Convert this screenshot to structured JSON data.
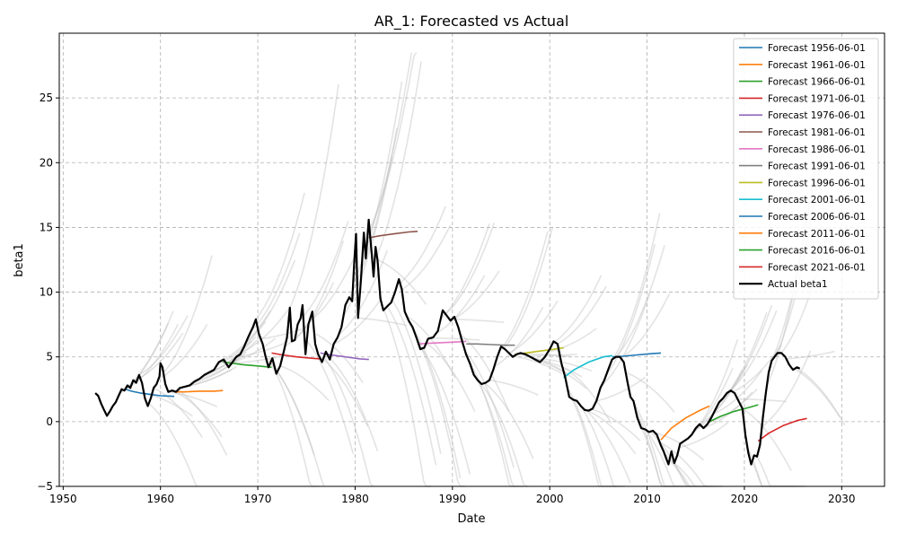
{
  "chart_data": {
    "type": "line",
    "title": "AR_1: Forecasted vs Actual",
    "xlabel": "Date",
    "ylabel": "beta1",
    "xlim": [
      1949.6,
      2034.4
    ],
    "ylim": [
      -5,
      30
    ],
    "x_ticks": [
      1950,
      1960,
      1970,
      1980,
      1990,
      2000,
      2010,
      2020,
      2030
    ],
    "y_ticks": [
      -5,
      0,
      5,
      10,
      15,
      20,
      25
    ],
    "grid": true,
    "legend_position": "top-right",
    "actual": {
      "name": "Actual beta1",
      "color": "#000000",
      "points": [
        [
          1953.3,
          2.2
        ],
        [
          1953.6,
          2.0
        ],
        [
          1953.9,
          1.4
        ],
        [
          1954.2,
          0.9
        ],
        [
          1954.5,
          0.45
        ],
        [
          1954.8,
          0.8
        ],
        [
          1955.1,
          1.2
        ],
        [
          1955.4,
          1.5
        ],
        [
          1955.7,
          2.0
        ],
        [
          1956.0,
          2.5
        ],
        [
          1956.3,
          2.4
        ],
        [
          1956.6,
          2.8
        ],
        [
          1956.9,
          2.6
        ],
        [
          1957.2,
          3.2
        ],
        [
          1957.5,
          3.0
        ],
        [
          1957.8,
          3.6
        ],
        [
          1958.1,
          3.0
        ],
        [
          1958.4,
          1.8
        ],
        [
          1958.7,
          1.2
        ],
        [
          1959.0,
          1.8
        ],
        [
          1959.3,
          2.6
        ],
        [
          1959.6,
          2.9
        ],
        [
          1959.9,
          3.5
        ],
        [
          1960.0,
          4.5
        ],
        [
          1960.2,
          4.2
        ],
        [
          1960.5,
          2.9
        ],
        [
          1960.8,
          2.3
        ],
        [
          1961.2,
          2.4
        ],
        [
          1961.6,
          2.3
        ],
        [
          1962.0,
          2.6
        ],
        [
          1962.5,
          2.7
        ],
        [
          1963.0,
          2.8
        ],
        [
          1963.5,
          3.1
        ],
        [
          1964.0,
          3.3
        ],
        [
          1964.5,
          3.6
        ],
        [
          1965.0,
          3.8
        ],
        [
          1965.5,
          4.0
        ],
        [
          1966.0,
          4.6
        ],
        [
          1966.5,
          4.8
        ],
        [
          1967.0,
          4.2
        ],
        [
          1967.4,
          4.6
        ],
        [
          1967.8,
          5.0
        ],
        [
          1968.2,
          5.2
        ],
        [
          1968.6,
          5.8
        ],
        [
          1969.0,
          6.5
        ],
        [
          1969.5,
          7.3
        ],
        [
          1969.8,
          7.9
        ],
        [
          1970.1,
          6.8
        ],
        [
          1970.5,
          6.0
        ],
        [
          1970.8,
          5.0
        ],
        [
          1971.1,
          4.2
        ],
        [
          1971.5,
          4.9
        ],
        [
          1971.9,
          3.7
        ],
        [
          1972.3,
          4.3
        ],
        [
          1972.7,
          5.5
        ],
        [
          1973.0,
          6.5
        ],
        [
          1973.3,
          8.8
        ],
        [
          1973.5,
          6.2
        ],
        [
          1973.8,
          6.3
        ],
        [
          1974.1,
          7.5
        ],
        [
          1974.4,
          8.0
        ],
        [
          1974.6,
          9.0
        ],
        [
          1974.9,
          5.2
        ],
        [
          1975.2,
          7.5
        ],
        [
          1975.6,
          8.5
        ],
        [
          1975.9,
          6.0
        ],
        [
          1976.2,
          5.2
        ],
        [
          1976.6,
          4.6
        ],
        [
          1977.0,
          5.4
        ],
        [
          1977.4,
          4.8
        ],
        [
          1977.8,
          6.0
        ],
        [
          1978.2,
          6.5
        ],
        [
          1978.6,
          7.3
        ],
        [
          1979.0,
          9.0
        ],
        [
          1979.4,
          9.6
        ],
        [
          1979.7,
          9.3
        ],
        [
          1979.9,
          12.2
        ],
        [
          1980.1,
          14.5
        ],
        [
          1980.3,
          8.0
        ],
        [
          1980.6,
          11.0
        ],
        [
          1980.9,
          14.6
        ],
        [
          1981.1,
          12.6
        ],
        [
          1981.4,
          15.6
        ],
        [
          1981.7,
          13.0
        ],
        [
          1981.9,
          11.2
        ],
        [
          1982.1,
          13.5
        ],
        [
          1982.3,
          12.5
        ],
        [
          1982.6,
          9.5
        ],
        [
          1982.9,
          8.6
        ],
        [
          1983.3,
          8.9
        ],
        [
          1983.7,
          9.2
        ],
        [
          1984.1,
          10.0
        ],
        [
          1984.5,
          11.0
        ],
        [
          1984.8,
          10.2
        ],
        [
          1985.1,
          8.5
        ],
        [
          1985.5,
          7.8
        ],
        [
          1985.9,
          7.3
        ],
        [
          1986.3,
          6.5
        ],
        [
          1986.7,
          5.6
        ],
        [
          1987.1,
          5.7
        ],
        [
          1987.5,
          6.4
        ],
        [
          1988.0,
          6.5
        ],
        [
          1988.5,
          7.0
        ],
        [
          1989.0,
          8.6
        ],
        [
          1989.4,
          8.2
        ],
        [
          1989.8,
          7.8
        ],
        [
          1990.2,
          8.1
        ],
        [
          1990.6,
          7.3
        ],
        [
          1991.0,
          6.2
        ],
        [
          1991.4,
          5.2
        ],
        [
          1991.8,
          4.5
        ],
        [
          1992.2,
          3.6
        ],
        [
          1992.6,
          3.2
        ],
        [
          1993.0,
          2.9
        ],
        [
          1993.4,
          3.0
        ],
        [
          1993.8,
          3.2
        ],
        [
          1994.2,
          4.0
        ],
        [
          1994.6,
          5.0
        ],
        [
          1995.0,
          5.8
        ],
        [
          1995.4,
          5.6
        ],
        [
          1995.8,
          5.3
        ],
        [
          1996.2,
          5.0
        ],
        [
          1996.6,
          5.2
        ],
        [
          1997.0,
          5.3
        ],
        [
          1997.5,
          5.2
        ],
        [
          1998.0,
          5.0
        ],
        [
          1998.5,
          4.8
        ],
        [
          1999.0,
          4.6
        ],
        [
          1999.5,
          5.0
        ],
        [
          2000.0,
          5.6
        ],
        [
          2000.4,
          6.2
        ],
        [
          2000.8,
          6.0
        ],
        [
          2001.2,
          4.5
        ],
        [
          2001.6,
          3.4
        ],
        [
          2002.0,
          1.9
        ],
        [
          2002.4,
          1.7
        ],
        [
          2002.8,
          1.6
        ],
        [
          2003.2,
          1.2
        ],
        [
          2003.6,
          0.9
        ],
        [
          2004.0,
          0.85
        ],
        [
          2004.4,
          1.0
        ],
        [
          2004.8,
          1.6
        ],
        [
          2005.2,
          2.6
        ],
        [
          2005.6,
          3.2
        ],
        [
          2006.0,
          4.0
        ],
        [
          2006.4,
          4.8
        ],
        [
          2006.8,
          5.0
        ],
        [
          2007.2,
          5.0
        ],
        [
          2007.6,
          4.6
        ],
        [
          2008.0,
          3.0
        ],
        [
          2008.3,
          1.9
        ],
        [
          2008.6,
          1.6
        ],
        [
          2009.0,
          0.3
        ],
        [
          2009.4,
          -0.5
        ],
        [
          2009.8,
          -0.6
        ],
        [
          2010.2,
          -0.8
        ],
        [
          2010.6,
          -0.7
        ],
        [
          2011.0,
          -1.0
        ],
        [
          2011.4,
          -1.8
        ],
        [
          2011.7,
          -2.3
        ],
        [
          2012.0,
          -2.9
        ],
        [
          2012.2,
          -3.3
        ],
        [
          2012.5,
          -2.3
        ],
        [
          2012.8,
          -3.2
        ],
        [
          2013.1,
          -2.6
        ],
        [
          2013.4,
          -1.7
        ],
        [
          2013.8,
          -1.5
        ],
        [
          2014.2,
          -1.3
        ],
        [
          2014.6,
          -1.0
        ],
        [
          2015.0,
          -0.5
        ],
        [
          2015.4,
          -0.2
        ],
        [
          2015.8,
          -0.5
        ],
        [
          2016.2,
          -0.2
        ],
        [
          2016.6,
          0.3
        ],
        [
          2017.0,
          0.9
        ],
        [
          2017.4,
          1.5
        ],
        [
          2017.8,
          1.8
        ],
        [
          2018.2,
          2.2
        ],
        [
          2018.6,
          2.4
        ],
        [
          2019.0,
          2.2
        ],
        [
          2019.4,
          1.6
        ],
        [
          2019.8,
          1.0
        ],
        [
          2020.1,
          -1.0
        ],
        [
          2020.4,
          -2.4
        ],
        [
          2020.7,
          -3.3
        ],
        [
          2021.0,
          -2.6
        ],
        [
          2021.3,
          -2.7
        ],
        [
          2021.6,
          -1.8
        ],
        [
          2021.9,
          0.3
        ],
        [
          2022.2,
          2.2
        ],
        [
          2022.5,
          3.8
        ],
        [
          2022.8,
          4.7
        ],
        [
          2023.1,
          5.0
        ],
        [
          2023.4,
          5.3
        ],
        [
          2023.8,
          5.3
        ],
        [
          2024.2,
          5.0
        ],
        [
          2024.6,
          4.4
        ],
        [
          2025.0,
          4.0
        ],
        [
          2025.4,
          4.2
        ],
        [
          2025.7,
          4.1
        ]
      ]
    },
    "forecast_series": [
      {
        "name": "Forecast 1956-06-01",
        "color": "#1f77b4",
        "points": [
          [
            1956.42,
            2.5
          ],
          [
            1957.0,
            2.35
          ],
          [
            1958.0,
            2.2
          ],
          [
            1959.0,
            2.1
          ],
          [
            1960.0,
            2.0
          ],
          [
            1961.42,
            1.95
          ]
        ]
      },
      {
        "name": "Forecast 1961-06-01",
        "color": "#ff7f0e",
        "points": [
          [
            1961.42,
            2.3
          ],
          [
            1962.5,
            2.3
          ],
          [
            1964.0,
            2.35
          ],
          [
            1965.5,
            2.35
          ],
          [
            1966.42,
            2.4
          ]
        ]
      },
      {
        "name": "Forecast 1966-06-01",
        "color": "#2ca02c",
        "points": [
          [
            1966.42,
            4.6
          ],
          [
            1967.5,
            4.5
          ],
          [
            1968.5,
            4.4
          ],
          [
            1970.0,
            4.3
          ],
          [
            1971.42,
            4.2
          ]
        ]
      },
      {
        "name": "Forecast 1971-06-01",
        "color": "#d62728",
        "points": [
          [
            1971.42,
            5.3
          ],
          [
            1972.5,
            5.15
          ],
          [
            1974.0,
            5.0
          ],
          [
            1975.5,
            4.9
          ],
          [
            1976.42,
            4.85
          ]
        ]
      },
      {
        "name": "Forecast 1976-06-01",
        "color": "#9467bd",
        "points": [
          [
            1976.42,
            5.3
          ],
          [
            1977.5,
            5.15
          ],
          [
            1979.0,
            5.0
          ],
          [
            1980.5,
            4.85
          ],
          [
            1981.42,
            4.8
          ]
        ]
      },
      {
        "name": "Forecast 1981-06-01",
        "color": "#8c564b",
        "points": [
          [
            1981.42,
            14.2
          ],
          [
            1982.5,
            14.35
          ],
          [
            1984.0,
            14.5
          ],
          [
            1985.5,
            14.65
          ],
          [
            1986.42,
            14.7
          ]
        ]
      },
      {
        "name": "Forecast 1986-06-01",
        "color": "#e377c2",
        "points": [
          [
            1986.42,
            6.0
          ],
          [
            1987.5,
            6.05
          ],
          [
            1989.0,
            6.1
          ],
          [
            1990.5,
            6.15
          ],
          [
            1991.42,
            6.2
          ]
        ]
      },
      {
        "name": "Forecast 1991-06-01",
        "color": "#7f7f7f",
        "points": [
          [
            1991.42,
            6.0
          ],
          [
            1992.5,
            6.0
          ],
          [
            1994.0,
            5.95
          ],
          [
            1995.5,
            5.9
          ],
          [
            1996.42,
            5.9
          ]
        ]
      },
      {
        "name": "Forecast 1996-06-01",
        "color": "#bcbd22",
        "points": [
          [
            1996.42,
            5.2
          ],
          [
            1997.5,
            5.3
          ],
          [
            1999.0,
            5.45
          ],
          [
            2000.5,
            5.6
          ],
          [
            2001.42,
            5.7
          ]
        ]
      },
      {
        "name": "Forecast 2001-06-01",
        "color": "#17becf",
        "points": [
          [
            2001.42,
            3.4
          ],
          [
            2002.5,
            4.0
          ],
          [
            2004.0,
            4.6
          ],
          [
            2005.5,
            5.0
          ],
          [
            2006.42,
            5.1
          ]
        ]
      },
      {
        "name": "Forecast 2006-06-01",
        "color": "#1f77b4",
        "points": [
          [
            2006.42,
            5.0
          ],
          [
            2007.5,
            5.05
          ],
          [
            2009.0,
            5.15
          ],
          [
            2010.5,
            5.25
          ],
          [
            2011.42,
            5.3
          ]
        ]
      },
      {
        "name": "Forecast 2011-06-01",
        "color": "#ff7f0e",
        "points": [
          [
            2011.42,
            -1.4
          ],
          [
            2012.5,
            -0.5
          ],
          [
            2014.0,
            0.3
          ],
          [
            2015.5,
            0.9
          ],
          [
            2016.42,
            1.2
          ]
        ]
      },
      {
        "name": "Forecast 2016-06-01",
        "color": "#2ca02c",
        "points": [
          [
            2016.42,
            0.0
          ],
          [
            2017.5,
            0.4
          ],
          [
            2019.0,
            0.8
          ],
          [
            2020.5,
            1.1
          ],
          [
            2021.42,
            1.3
          ]
        ]
      },
      {
        "name": "Forecast 2021-06-01",
        "color": "#d62728",
        "points": [
          [
            2021.42,
            -1.5
          ],
          [
            2022.5,
            -0.9
          ],
          [
            2024.0,
            -0.3
          ],
          [
            2025.5,
            0.1
          ],
          [
            2026.42,
            0.25
          ]
        ]
      }
    ],
    "rolling_forecast_color": "#c0c0c0",
    "rolling_forecast_horizon_years": 5,
    "rolling_forecast_step_years": 0.5
  }
}
